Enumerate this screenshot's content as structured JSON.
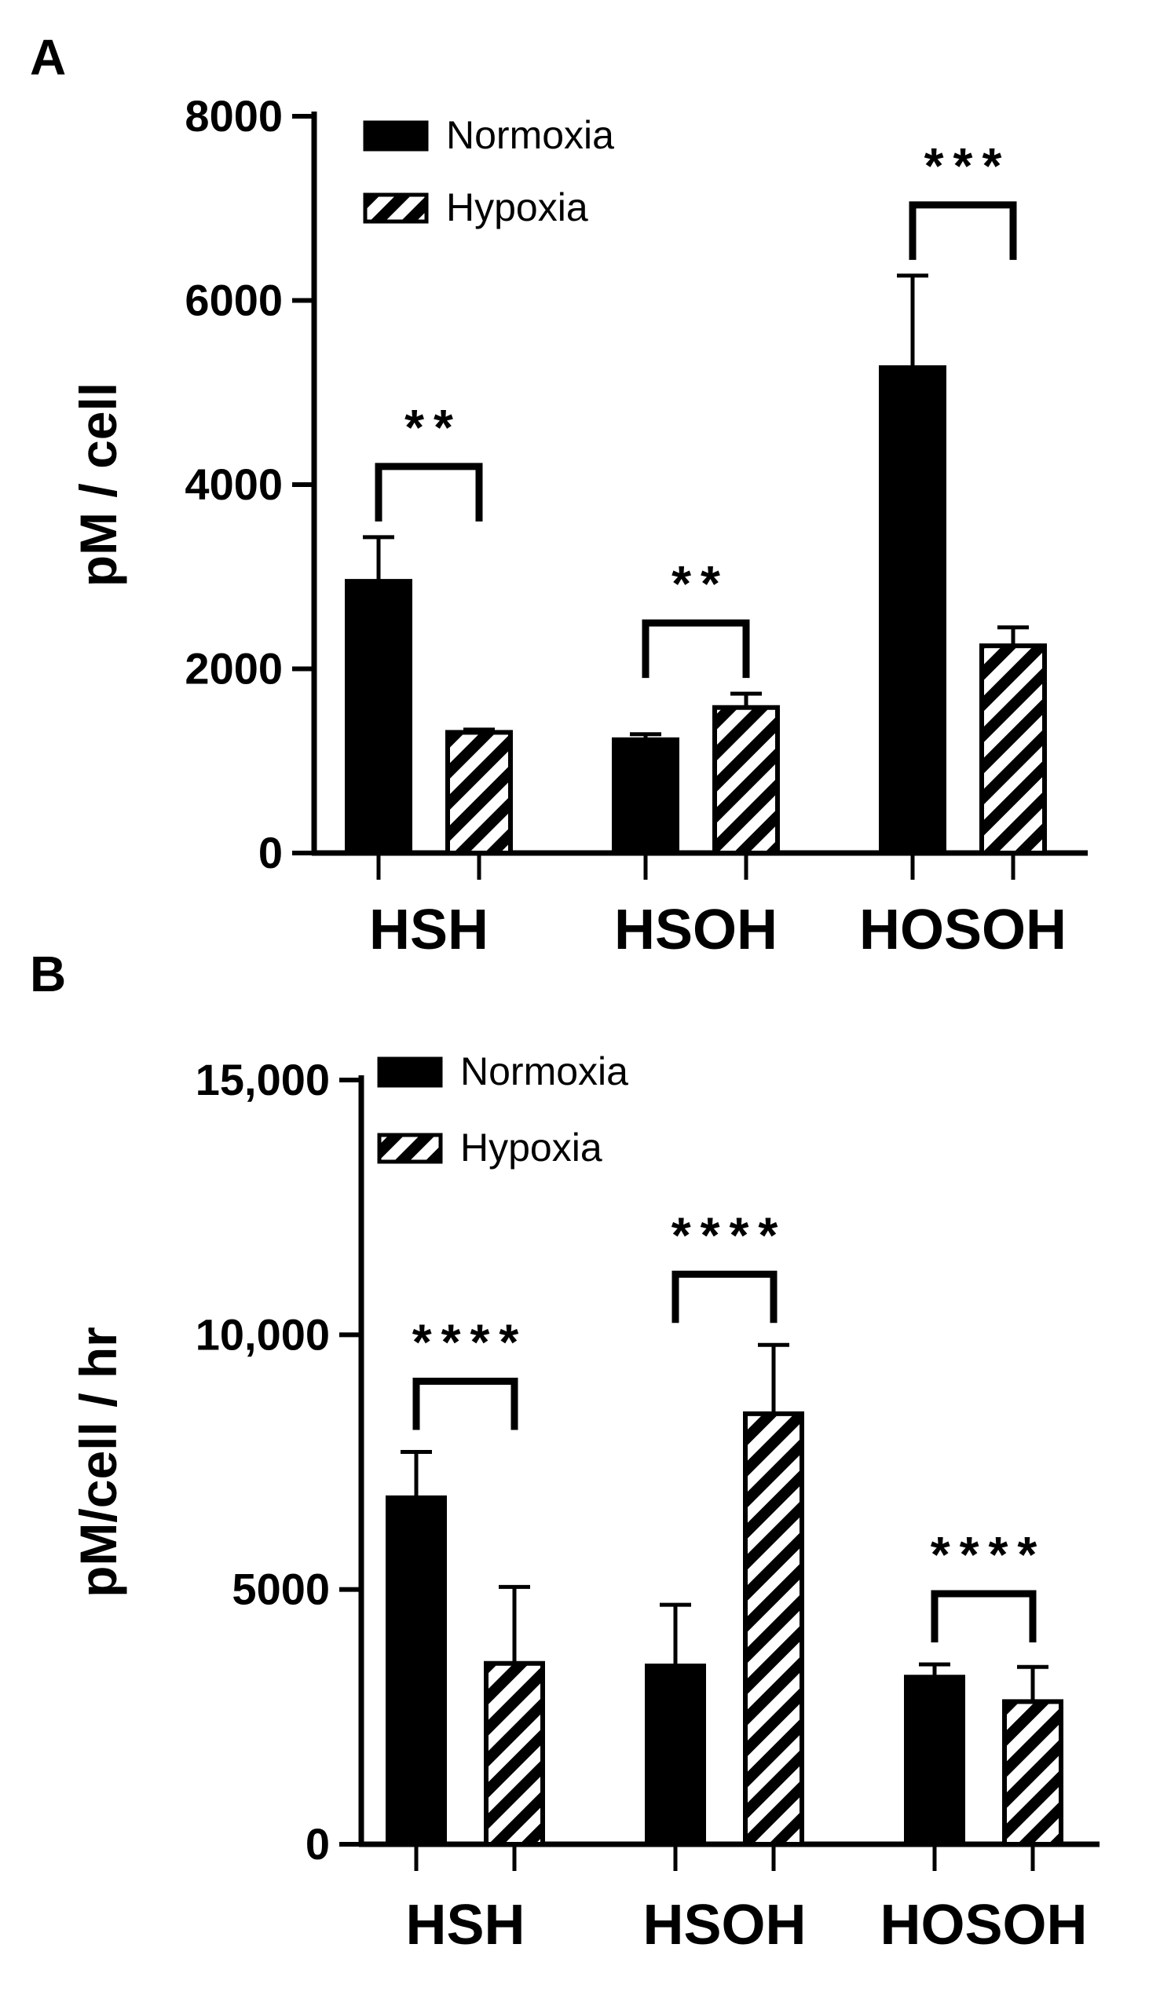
{
  "chart_data": [
    {
      "panel": "A",
      "type": "bar",
      "ylabel": "pM / cell",
      "ylim": [
        0,
        8000
      ],
      "yticks": [
        0,
        2000,
        4000,
        6000,
        8000
      ],
      "ytick_labels": [
        "0",
        "2000",
        "4000",
        "6000",
        "8000"
      ],
      "categories": [
        "HSH",
        "HSOH",
        "HOSOH"
      ],
      "legend_position": "top-left",
      "series": [
        {
          "name": "Normoxia",
          "pattern": "solid",
          "values": [
            2950,
            1230,
            5270
          ],
          "errors": [
            480,
            60,
            1000
          ]
        },
        {
          "name": "Hypoxia",
          "pattern": "hatched",
          "values": [
            1310,
            1580,
            2250
          ],
          "errors": [
            30,
            150,
            200
          ]
        }
      ],
      "significance": [
        "**",
        "**",
        "***"
      ]
    },
    {
      "panel": "B",
      "type": "bar",
      "ylabel": "pM/cell / hr",
      "ylim": [
        0,
        15000
      ],
      "yticks": [
        0,
        5000,
        10000,
        15000
      ],
      "ytick_labels": [
        "0",
        "5000",
        "10,000",
        "15,000"
      ],
      "categories": [
        "HSH",
        "HSOH",
        "HOSOH"
      ],
      "legend_position": "top-left",
      "series": [
        {
          "name": "Normoxia",
          "pattern": "solid",
          "values": [
            6800,
            3500,
            3280
          ],
          "errors": [
            900,
            1200,
            250
          ]
        },
        {
          "name": "Hypoxia",
          "pattern": "hatched",
          "values": [
            3550,
            8450,
            2800
          ],
          "errors": [
            1500,
            1350,
            680
          ]
        }
      ],
      "significance": [
        "****",
        "****",
        "****"
      ]
    }
  ],
  "colors": {
    "normoxia_fill": "#000000",
    "hypoxia_fill": "#ffffff",
    "hatch": "#000000",
    "axis": "#000000"
  }
}
